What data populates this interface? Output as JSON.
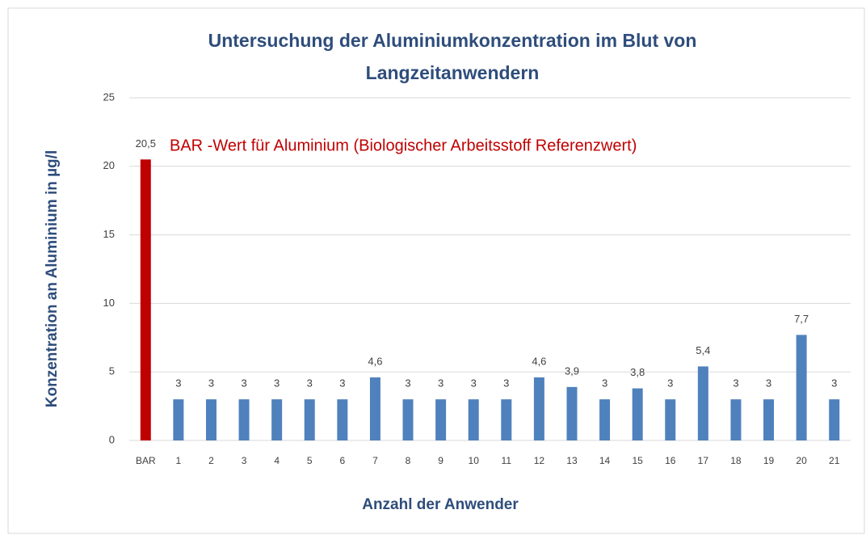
{
  "chart_data": {
    "type": "bar",
    "title": [
      "Untersuchung der Aluminiumkonzentration im Blut von",
      "Langzeitanwendern"
    ],
    "y_label": "Konzentration an Aluminium in µg/l",
    "x_label": "Anzahl der Anwender",
    "annotation": "BAR -Wert für Aluminium (Biologischer Arbeitsstoff Referenzwert)",
    "categories": [
      "BAR",
      "1",
      "2",
      "3",
      "4",
      "5",
      "6",
      "7",
      "8",
      "9",
      "10",
      "11",
      "12",
      "13",
      "14",
      "15",
      "16",
      "17",
      "18",
      "19",
      "20",
      "21"
    ],
    "values": [
      20.5,
      3,
      3,
      3,
      3,
      3,
      3,
      4.6,
      3,
      3,
      3,
      3,
      4.6,
      3.9,
      3,
      3.8,
      3,
      5.4,
      3,
      3,
      7.7,
      3
    ],
    "value_labels": [
      "20,5",
      "3",
      "3",
      "3",
      "3",
      "3",
      "3",
      "4,6",
      "3",
      "3",
      "3",
      "3",
      "4,6",
      "3,9",
      "3",
      "3,8",
      "3",
      "5,4",
      "3",
      "3",
      "7,7",
      "3"
    ],
    "colors": [
      "#c00000",
      "#4f81bd",
      "#4f81bd",
      "#4f81bd",
      "#4f81bd",
      "#4f81bd",
      "#4f81bd",
      "#4f81bd",
      "#4f81bd",
      "#4f81bd",
      "#4f81bd",
      "#4f81bd",
      "#4f81bd",
      "#4f81bd",
      "#4f81bd",
      "#4f81bd",
      "#4f81bd",
      "#4f81bd",
      "#4f81bd",
      "#4f81bd",
      "#4f81bd",
      "#4f81bd"
    ],
    "ylim": [
      0,
      25
    ],
    "yticks": [
      0,
      5,
      10,
      15,
      20,
      25
    ],
    "grid": true
  }
}
